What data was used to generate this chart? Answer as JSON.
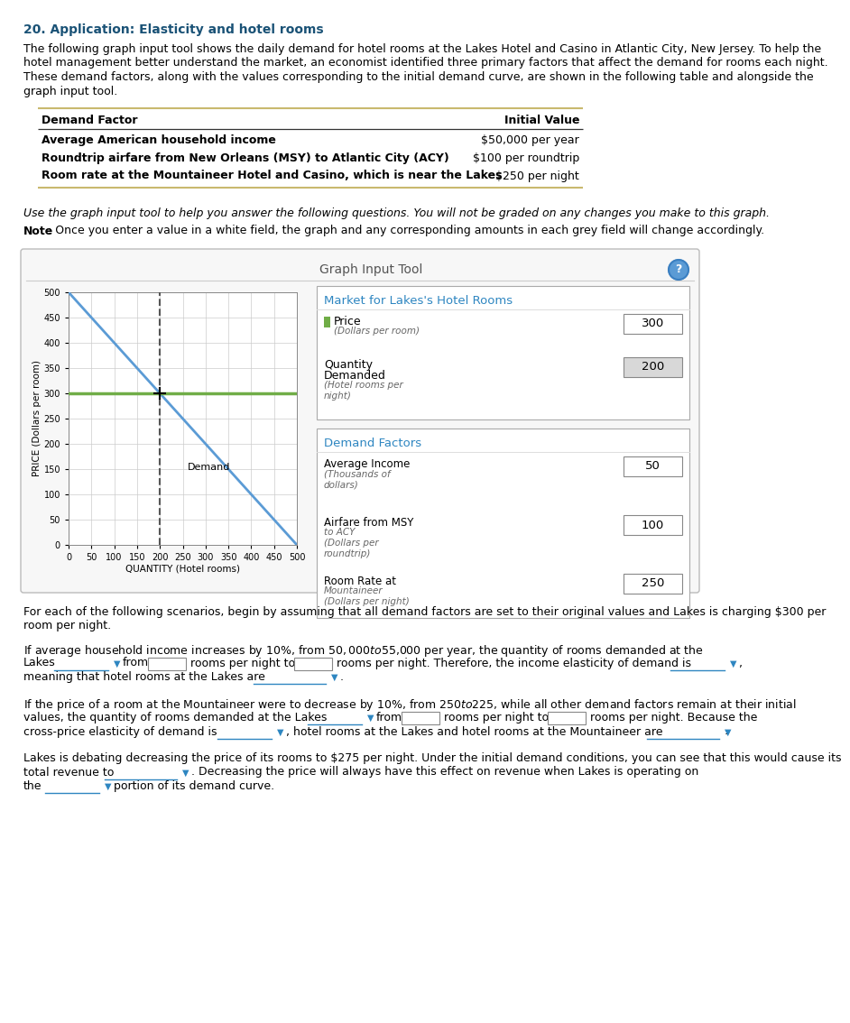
{
  "title": "20. Application: Elasticity and hotel rooms",
  "title_color": "#1a5276",
  "body_text_lines": [
    "The following graph input tool shows the daily demand for hotel rooms at the Lakes Hotel and Casino in Atlantic City, New Jersey. To help the",
    "hotel management better understand the market, an economist identified three primary factors that affect the demand for rooms each night.",
    "These demand factors, along with the values corresponding to the initial demand curve, are shown in the following table and alongside the",
    "graph input tool."
  ],
  "table_header": [
    "Demand Factor",
    "Initial Value"
  ],
  "table_rows": [
    [
      "Average American household income",
      "$50,000 per year"
    ],
    [
      "Roundtrip airfare from New Orleans (MSY) to Atlantic City (ACY)",
      "$100 per roundtrip"
    ],
    [
      "Room rate at the Mountaineer Hotel and Casino, which is near the Lakes",
      "$250 per night"
    ]
  ],
  "italic_text": "Use the graph input tool to help you answer the following questions. You will not be graded on any changes you make to this graph.",
  "note_bold": "Note",
  "note_rest": ": Once you enter a value in a white field, the graph and any corresponding amounts in each grey field will change accordingly.",
  "graph_input_tool_title": "Graph Input Tool",
  "market_section_title": "Market for Lakes's Hotel Rooms",
  "price_label_line1": "Price",
  "price_label_line2": "(Dollars per room)",
  "price_value": "300",
  "qty_label_line1": "Quantity",
  "qty_label_line2": "Demanded",
  "qty_label_line3": "(Hotel rooms per",
  "qty_label_line4": "night)",
  "qty_value": "200",
  "demand_factors_title": "Demand Factors",
  "avg_income_line1": "Average Income",
  "avg_income_line2": "(Thousands of",
  "avg_income_line3": "dollars)",
  "avg_income_value": "50",
  "airfare_line1": "Airfare from MSY",
  "airfare_line2": "to ACY",
  "airfare_line3": "(Dollars per",
  "airfare_line4": "roundtrip)",
  "airfare_value": "100",
  "room_rate_line1": "Room Rate at",
  "room_rate_line2": "Mountaineer",
  "room_rate_line3": "(Dollars per night)",
  "room_rate_value": "250",
  "graph_ylabel": "PRICE (Dollars per room)",
  "graph_xlabel": "QUANTITY (Hotel rooms)",
  "demand_line_color": "#5b9bd5",
  "price_line_color": "#70ad47",
  "dashed_line_color": "#555555",
  "section_title_color": "#2e86c1",
  "dropdown_color": "#2e86c1",
  "panel_border_color": "#bbbbbb",
  "panel_bg": "#f7f7f7",
  "section_box_border": "#aaaaaa",
  "section_box_bg": "#ffffff",
  "input_box_border": "#888888",
  "input_box_bg": "#ffffff",
  "qty_box_bg": "#d8d8d8",
  "bottom_para1_line1": "For each of the following scenarios, begin by assuming that all demand factors are set to their original values and Lakes is charging $300 per",
  "bottom_para1_line2": "room per night.",
  "bottom_para2_line1": "If average household income increases by 10%, from $50,000 to $55,000 per year, the quantity of rooms demanded at the",
  "bottom_para3_line1": "If the price of a room at the Mountaineer were to decrease by 10%, from $250 to $225, while all other demand factors remain at their initial",
  "bottom_para3_line2": "values, the quantity of rooms demanded at the Lakes",
  "bottom_para4_line1": "Lakes is debating decreasing the price of its rooms to $275 per night. Under the initial demand conditions, you can see that this would cause its",
  "bottom_para4_line2": "total revenue to",
  "bottom_para4_line3": ". Decreasing the price will always have this effect on revenue when Lakes is operating on",
  "bottom_para4_line4": "the",
  "bottom_para4_line5": "portion of its demand curve."
}
